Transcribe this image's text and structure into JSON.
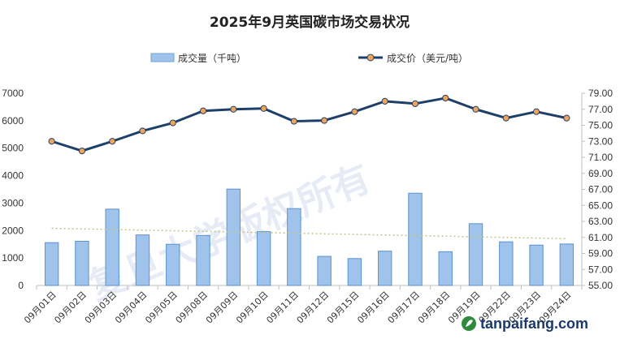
{
  "chart_data": {
    "type": "bar+line",
    "title": "2025年9月英国碳市场交易状况",
    "categories": [
      "09月01日",
      "09月02日",
      "09月03日",
      "09月04日",
      "09月05日",
      "09月08日",
      "09月09日",
      "09月10日",
      "09月11日",
      "09月12日",
      "09月15日",
      "09月16日",
      "09月17日",
      "09月18日",
      "09月19日",
      "09月22日",
      "09月23日",
      "09月24日"
    ],
    "series": [
      {
        "name": "成交量（千吨）",
        "type": "bar",
        "axis": "left",
        "color": "#9fc3ea",
        "values": [
          1560,
          1610,
          2780,
          1840,
          1500,
          1820,
          3510,
          1960,
          2800,
          1060,
          980,
          1250,
          3360,
          1230,
          2250,
          1590,
          1470,
          1510
        ]
      },
      {
        "name": "成交价（美元/吨）",
        "type": "line",
        "axis": "right",
        "color": "#1f3f6b",
        "marker_color": "#f0a45a",
        "values": [
          73.0,
          71.8,
          73.0,
          74.3,
          75.3,
          76.8,
          77.0,
          77.1,
          75.5,
          75.6,
          76.7,
          78.0,
          77.7,
          78.4,
          77.0,
          75.9,
          76.7,
          75.9
        ]
      }
    ],
    "trendline": {
      "series": "成交量（千吨）",
      "style": "dotted",
      "color": "#c9c08a"
    },
    "y_left": {
      "min": 0,
      "max": 7000,
      "ticks": [
        "0",
        "1000",
        "2000",
        "3000",
        "4000",
        "5000",
        "6000",
        "7000"
      ]
    },
    "y_right": {
      "min": 55,
      "max": 79,
      "ticks": [
        "55.00",
        "57.00",
        "59.00",
        "61.00",
        "63.00",
        "65.00",
        "67.00",
        "69.00",
        "71.00",
        "73.00",
        "75.00",
        "77.00",
        "79.00"
      ]
    },
    "grid": false,
    "legend_position": "top-center"
  },
  "watermark": "复旦大学版权所有",
  "logo": {
    "text": "tanpaifang.com",
    "icon": "leaf-icon"
  }
}
